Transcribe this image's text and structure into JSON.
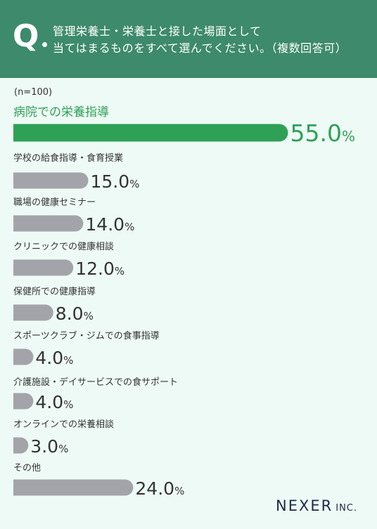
{
  "header": {
    "q_mark": "Q",
    "question_line1": "管理栄養士・栄養士と接した場面として",
    "question_line2": "当てはまるものをすべて選んでください。（複数回答可）"
  },
  "sample_note": "(n=100)",
  "chart_data": {
    "type": "bar",
    "orientation": "horizontal",
    "categories": [
      "病院での栄養指導",
      "学校の給食指導・食育授業",
      "職場の健康セミナー",
      "クリニックでの健康相談",
      "保健所での健康指導",
      "スポーツクラブ・ジムでの食事指導",
      "介護施設・デイサービスでの食サポート",
      "オンラインでの栄養相談",
      "その他"
    ],
    "values": [
      55.0,
      15.0,
      14.0,
      12.0,
      8.0,
      4.0,
      4.0,
      3.0,
      24.0
    ],
    "value_labels": [
      "55.0",
      "15.0",
      "14.0",
      "12.0",
      "8.0",
      "4.0",
      "4.0",
      "3.0",
      "24.0"
    ],
    "unit": "%",
    "highlight_index": 0,
    "colors": {
      "highlight": "#2ea157",
      "default": "#a3a4a9",
      "label": "#333333",
      "highlight_label": "#2ea157"
    }
  },
  "logo": {
    "main": "NEXER",
    "sub": "INC."
  }
}
